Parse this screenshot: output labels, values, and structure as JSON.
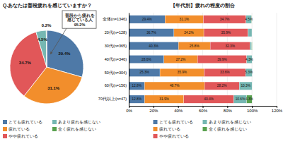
{
  "chart_data": [
    {
      "type": "pie",
      "title": "Q.あなたは普段疲れを感じていますか？",
      "categories": [
        "とても疲れている",
        "疲れている",
        "やや疲れている",
        "あまり疲れを感じない",
        "全く疲れを感じない"
      ],
      "values": [
        29.4,
        31.1,
        34.7,
        4.5,
        0.2
      ],
      "value_labels": [
        "29.4%",
        "31.1%",
        "34.7%",
        "4.5%",
        "0.2%"
      ],
      "data_labels": true,
      "legend": "lower left",
      "annotations": [
        {
          "text": "普段から疲れを\n感じている人\n95.2%"
        }
      ]
    },
    {
      "type": "bar",
      "orientation": "horizontal",
      "stacked": true,
      "title": "【年代別】疲れの程度の割合",
      "categories": [
        "全体(n=1346)",
        "20代(n=128)",
        "30代(n=365)",
        "40代(n=346)",
        "50代(n=304)",
        "60代(n=156)",
        "70代以上(n=47)"
      ],
      "series": [
        {
          "name": "とても疲れている",
          "values": [
            29.4,
            36.7,
            40.3,
            28.6,
            25.3,
            12.8,
            12.8
          ],
          "value_labels": [
            "29.4%",
            "36.7%",
            "40.3%",
            "28.6%",
            "25.3%",
            "12.8%",
            "12.8%"
          ]
        },
        {
          "name": "疲れている",
          "values": [
            31.1,
            24.2,
            25.8,
            27.2,
            35.9,
            48.7,
            31.9
          ],
          "value_labels": [
            "31.1%",
            "24.2%",
            "25.8%",
            "27.2%",
            "35.9%",
            "48.7%",
            "31.9%"
          ]
        },
        {
          "name": "やや疲れている",
          "values": [
            34.7,
            35.9,
            32.3,
            39.9,
            33.6,
            28.2,
            40.4
          ],
          "value_labels": [
            "34.7%",
            "35.9%",
            "32.3%",
            "39.9%",
            "33.6%",
            "28.2%",
            "40.4%"
          ]
        },
        {
          "name": "あまり疲れを感じない",
          "values": [
            4.5,
            3.1,
            1.4,
            4.3,
            5.3,
            10.3,
            10.6
          ],
          "value_labels": [
            "4.5%",
            null,
            null,
            "4.3%",
            "5.3%",
            "10.3%",
            "10.6%"
          ]
        },
        {
          "name": "全く疲れを感じない",
          "values": [
            0.2,
            0.0,
            0.3,
            0.0,
            0.0,
            0.0,
            4.3
          ],
          "value_labels": [
            null,
            null,
            null,
            null,
            null,
            null,
            "4.3%"
          ]
        }
      ],
      "xlim": [
        0,
        120
      ],
      "xticks": [
        {
          "value": 0,
          "label": "0%"
        },
        {
          "value": 20,
          "label": "20%"
        },
        {
          "value": 40,
          "label": "40%"
        },
        {
          "value": 60,
          "label": "60%"
        },
        {
          "value": 80,
          "label": "80%"
        },
        {
          "value": 100,
          "label": "100%"
        },
        {
          "value": 120,
          "label": "120%"
        }
      ],
      "grid": true,
      "data_labels": true,
      "legend": "lower center"
    }
  ]
}
